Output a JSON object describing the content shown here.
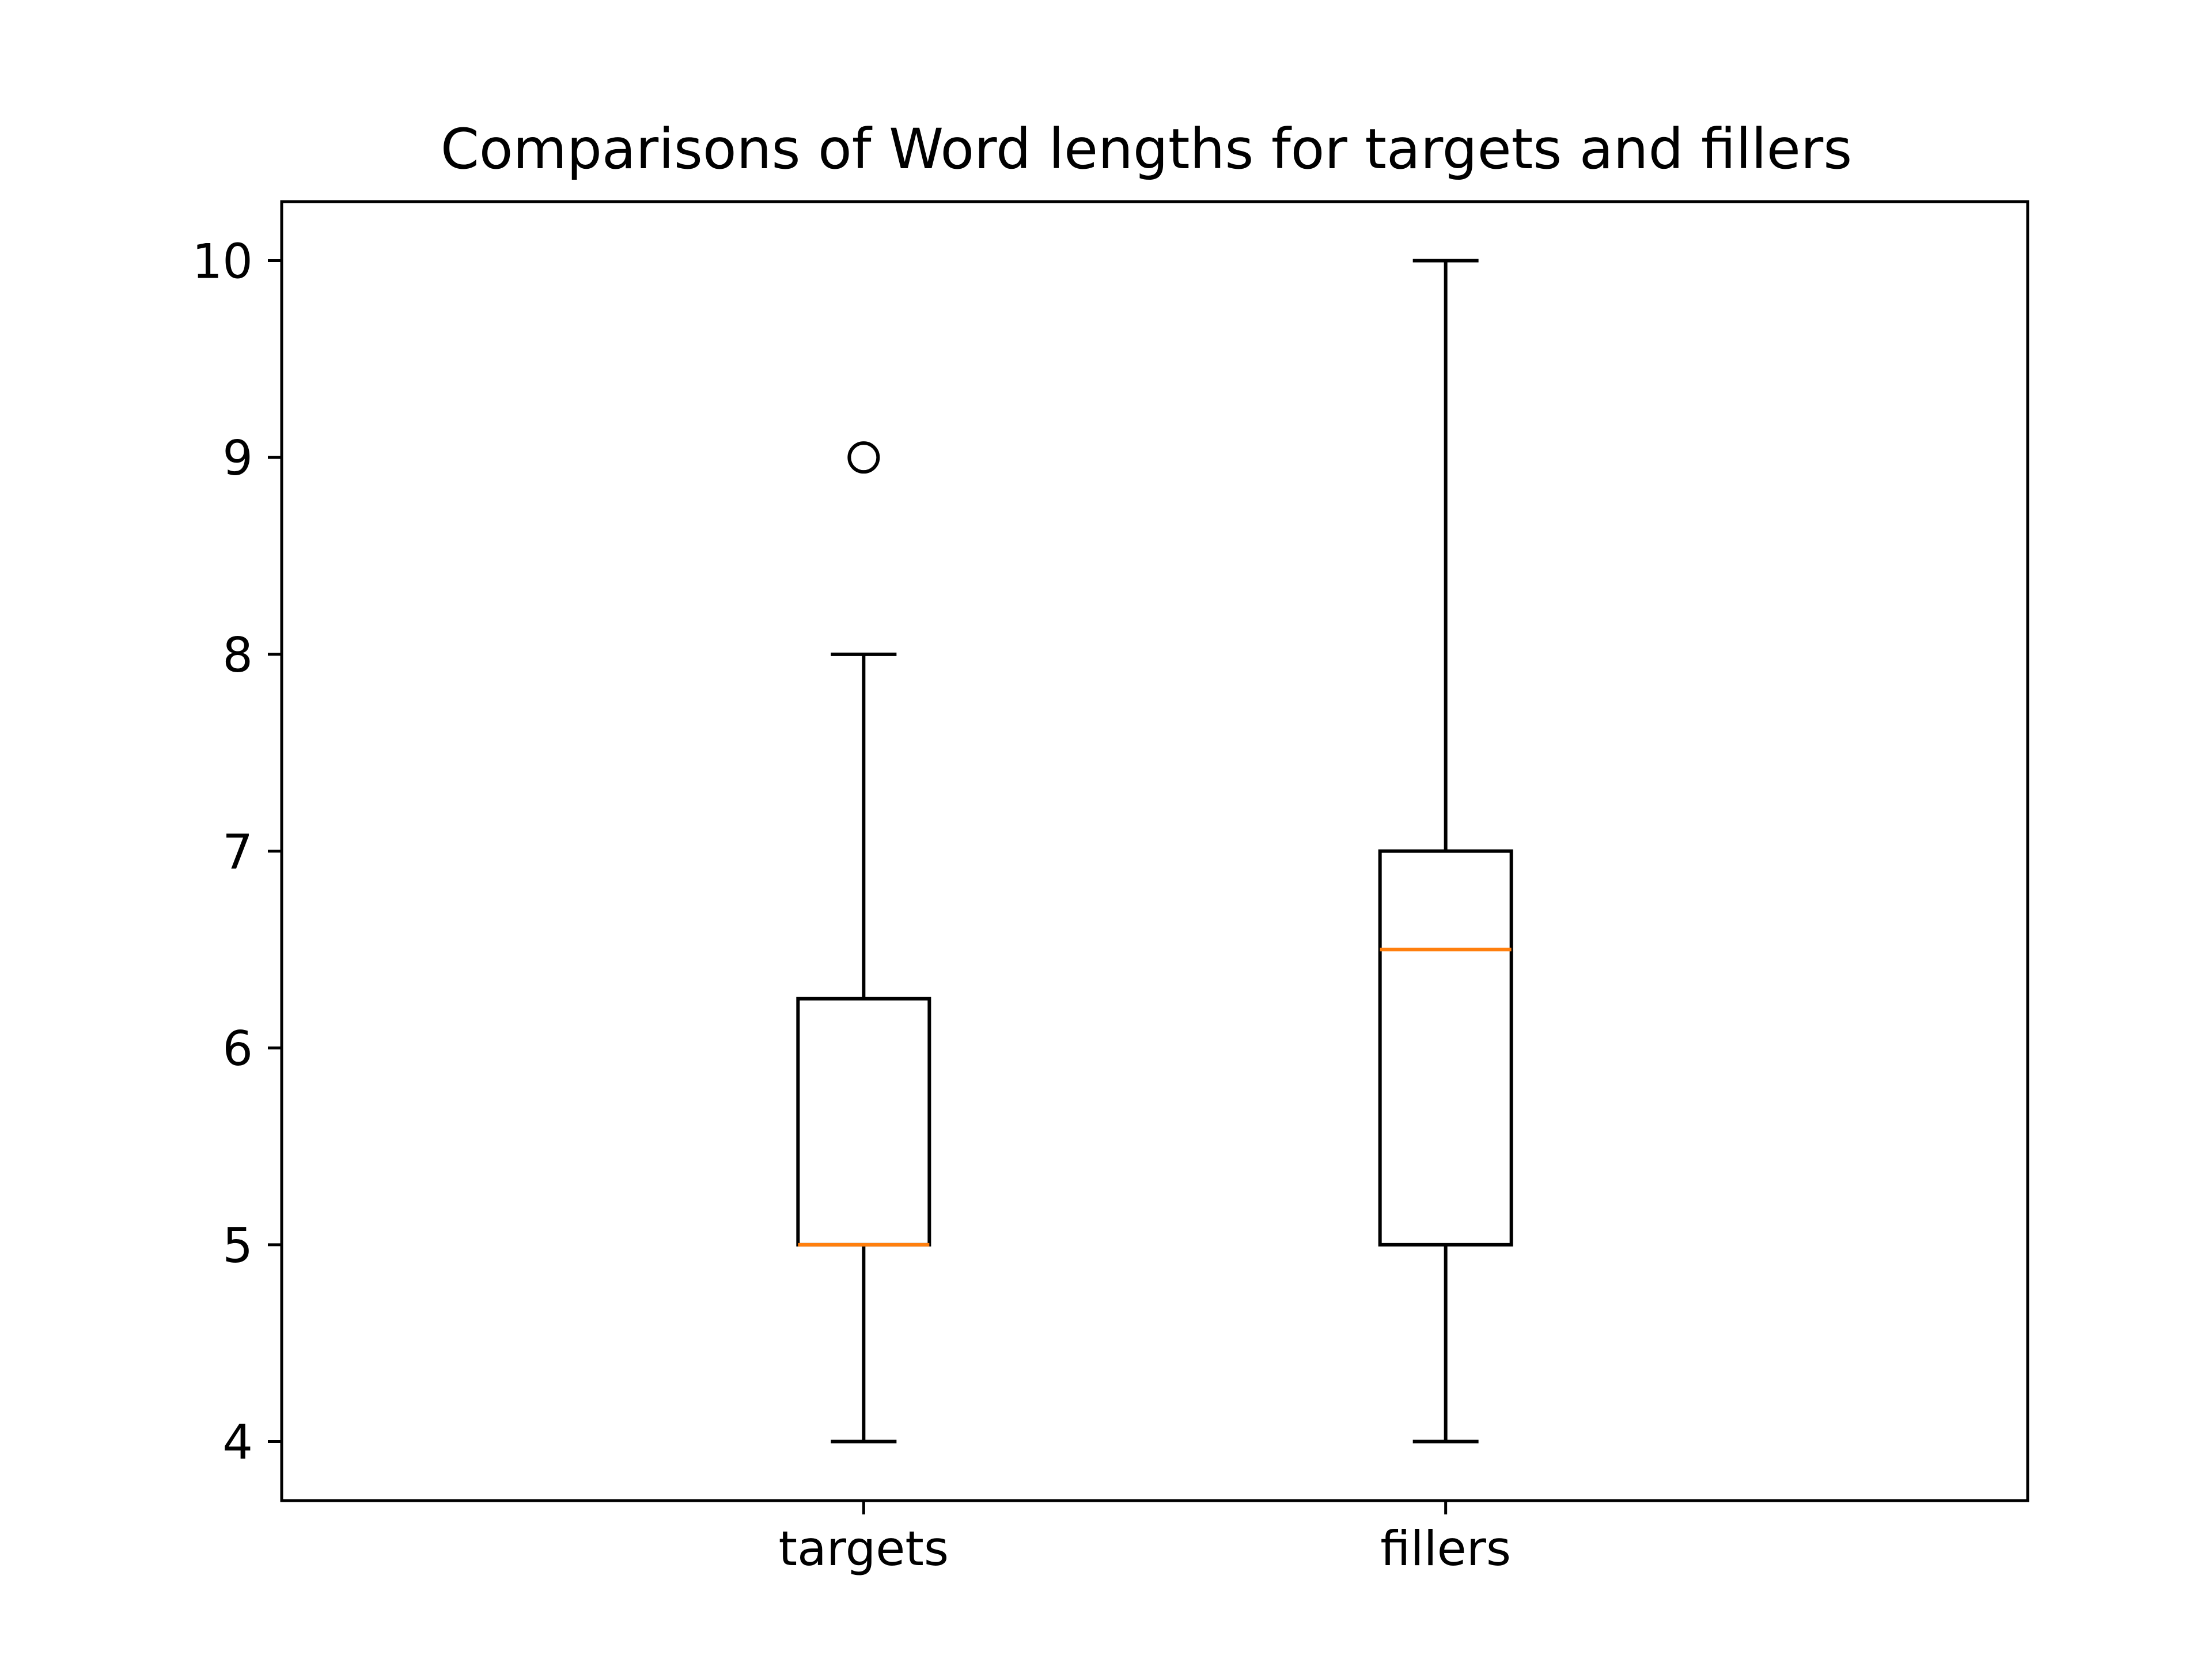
{
  "chart_data": {
    "type": "boxplot",
    "title": "Comparisons of Word lengths for targets and fillers",
    "xlabel": "",
    "ylabel": "",
    "categories": [
      "targets",
      "fillers"
    ],
    "boxes": [
      {
        "label": "targets",
        "whisker_low": 4,
        "q1": 5,
        "median": 5,
        "q3": 6.25,
        "whisker_high": 8,
        "outliers": [
          9
        ]
      },
      {
        "label": "fillers",
        "whisker_low": 4,
        "q1": 5,
        "median": 6.5,
        "q3": 7,
        "whisker_high": 10,
        "outliers": []
      }
    ],
    "yticks": [
      "4",
      "5",
      "6",
      "7",
      "8",
      "9",
      "10"
    ],
    "ylim": [
      3.7,
      10.3
    ],
    "grid": false,
    "colors": {
      "box": "#000000",
      "median": "#ff7f0e",
      "outlier": "#000000"
    }
  }
}
